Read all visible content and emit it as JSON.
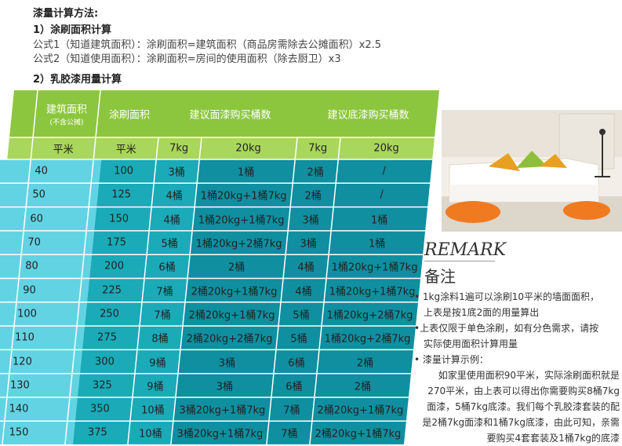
{
  "heading": "漆量计算方法:",
  "section1": {
    "title": "1）涂刷面积计算",
    "formula1": "公式1（知道建筑面积）：涂刷面积=建筑面积（商品房需除去公摊面积）x2.5",
    "formula2": "公式2（知道使用面积）：涂刷面积=房间的使用面积（除去厨卫）x3"
  },
  "section2": {
    "title": "2）乳胶漆用量计算"
  },
  "table": {
    "headers": {
      "building_area": "建筑面积",
      "building_area_note": "(不含公摊)",
      "paint_area": "涂刷面积",
      "top_coat": "建议面漆购买桶数",
      "base_coat": "建议底漆购买桶数"
    },
    "units": [
      "平米",
      "平米",
      "7kg",
      "20kg",
      "7kg",
      "20kg"
    ],
    "rows": [
      [
        "40",
        "100",
        "3桶",
        "1桶",
        "2桶",
        "/"
      ],
      [
        "50",
        "125",
        "4桶",
        "1桶20kg+1桶7kg",
        "2桶",
        "/"
      ],
      [
        "60",
        "150",
        "4桶",
        "1桶20kg+1桶7kg",
        "3桶",
        "1桶"
      ],
      [
        "70",
        "175",
        "5桶",
        "1桶20kg+2桶7kg",
        "3桶",
        "1桶"
      ],
      [
        "80",
        "200",
        "6桶",
        "2桶",
        "4桶",
        "1桶20kg+1桶7kg"
      ],
      [
        "90",
        "225",
        "7桶",
        "2桶20kg+1桶7kg",
        "4桶",
        "1桶20kg+1桶7kg"
      ],
      [
        "100",
        "250",
        "7桶",
        "2桶20kg+1桶7kg",
        "5桶",
        "1桶20kg+2桶7kg"
      ],
      [
        "110",
        "275",
        "8桶",
        "2桶20kg+2桶7kg",
        "5桶",
        "1桶20kg+2桶7kg"
      ],
      [
        "120",
        "300",
        "9桶",
        "3桶",
        "6桶",
        "2桶"
      ],
      [
        "130",
        "325",
        "9桶",
        "3桶",
        "6桶",
        "2桶"
      ],
      [
        "140",
        "350",
        "10桶",
        "3桶20kg+1桶7kg",
        "7桶",
        "2桶20kg+1桶7kg"
      ],
      [
        "150",
        "375",
        "10桶",
        "3桶20kg+1桶7kg",
        "7桶",
        "2桶20kg+1桶7kg"
      ]
    ],
    "colors": {
      "header_green": "#8cc63e",
      "unit_green": "#a9d65c",
      "row_light": "#62d3e3",
      "row_teal": "#1aaab8",
      "row_deep": "#0f8fa0",
      "grid": "#ffffff"
    }
  },
  "remark": {
    "title": "REMARK",
    "subtitle": "备注",
    "notes": [
      [
        "• 1kg涂料1遍可以涂刷10平米的墙面面积，",
        "上表是按1底2面的用量算出"
      ],
      [
        "•上表仅限于单色涂刷，如有分色需求，请按",
        "实际使用面积计算用量"
      ],
      [
        "• 漆量计算示例：",
        "如家里使用面积90平米，实际涂刷面积就是",
        "270平米，由上表可以得出你需要购买8桶7kg",
        "面漆，5桶7kg底漆。我们每个乳胶漆套装的配",
        "是2桶7kg面漆和1桶7kg底漆，由此可知，亲需",
        "要购买4套套装及1桶7kg的底漆"
      ]
    ]
  },
  "photo": {
    "icon": "living-room-photo"
  }
}
